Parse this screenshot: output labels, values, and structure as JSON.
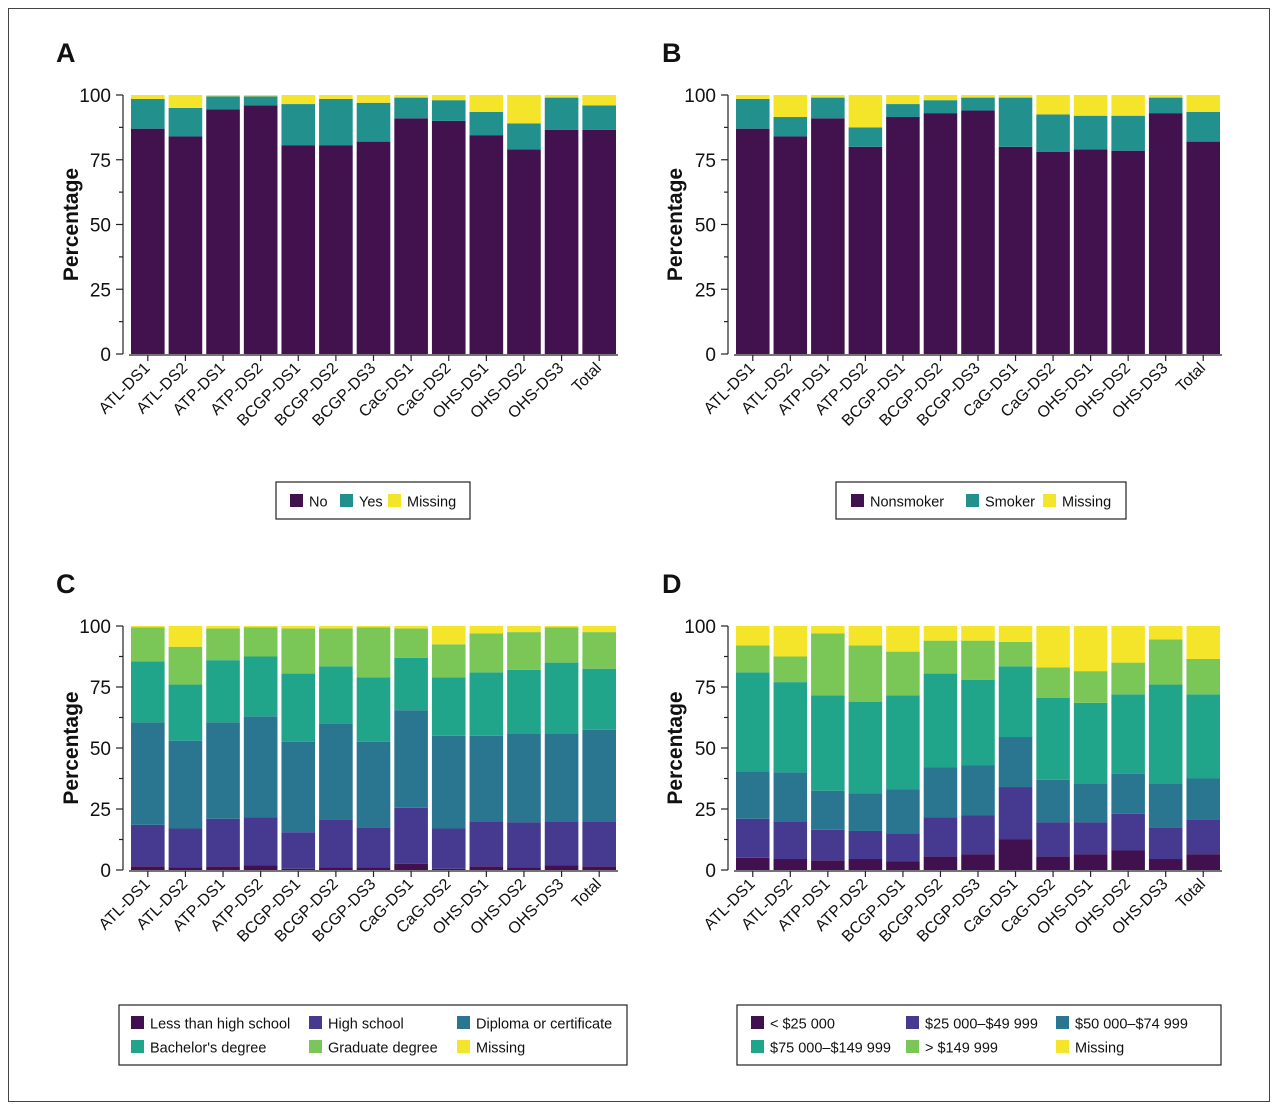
{
  "colors": {
    "A": [
      "#42124f",
      "#22908c",
      "#f5e52a"
    ],
    "B": [
      "#42124f",
      "#22908c",
      "#f5e52a"
    ],
    "C": [
      "#40114e",
      "#453a8f",
      "#2a7690",
      "#21a58a",
      "#7ac656",
      "#f5e52a"
    ],
    "D": [
      "#40114e",
      "#453a8f",
      "#2a7690",
      "#21a58a",
      "#7ac656",
      "#f5e52a"
    ]
  },
  "chart_data": [
    {
      "panel": "A",
      "type": "bar",
      "stacked": true,
      "ylabel": "Percentage",
      "ylim": [
        0,
        100
      ],
      "yticks": [
        "0",
        "25",
        "50",
        "75",
        "100"
      ],
      "categories": [
        "ATL-DS1",
        "ATL-DS2",
        "ATP-DS1",
        "ATP-DS2",
        "BCGP-DS1",
        "BCGP-DS2",
        "BCGP-DS3",
        "CaG-DS1",
        "CaG-DS2",
        "OHS-DS1",
        "OHS-DS2",
        "OHS-DS3",
        "Total"
      ],
      "legend": [
        "No",
        "Yes",
        "Missing"
      ],
      "series": [
        {
          "name": "No",
          "values": [
            87,
            84,
            94.5,
            96,
            80.5,
            80.5,
            82,
            91,
            90,
            84.5,
            79,
            86.5,
            86.5
          ]
        },
        {
          "name": "Yes",
          "values": [
            11.5,
            11,
            5,
            3.5,
            16,
            18,
            15,
            8,
            8,
            9,
            10,
            12.5,
            9.5
          ]
        },
        {
          "name": "Missing",
          "values": [
            1.5,
            5,
            0.5,
            0.5,
            3.5,
            1.5,
            3,
            1,
            2,
            6.5,
            11,
            1,
            4
          ]
        }
      ]
    },
    {
      "panel": "B",
      "type": "bar",
      "stacked": true,
      "ylabel": "Percentage",
      "ylim": [
        0,
        100
      ],
      "yticks": [
        "0",
        "25",
        "50",
        "75",
        "100"
      ],
      "categories": [
        "ATL-DS1",
        "ATL-DS2",
        "ATP-DS1",
        "ATP-DS2",
        "BCGP-DS1",
        "BCGP-DS2",
        "BCGP-DS3",
        "CaG-DS1",
        "CaG-DS2",
        "OHS-DS1",
        "OHS-DS2",
        "OHS-DS3",
        "Total"
      ],
      "legend": [
        "Nonsmoker",
        "Smoker",
        "Missing"
      ],
      "series": [
        {
          "name": "Nonsmoker",
          "values": [
            87,
            84,
            91,
            80,
            91.5,
            93,
            94,
            80,
            78,
            79,
            78.5,
            93,
            82
          ]
        },
        {
          "name": "Smoker",
          "values": [
            11.5,
            7.5,
            8,
            7.5,
            5,
            5,
            5,
            19,
            14.5,
            13,
            13.5,
            6,
            11.5
          ]
        },
        {
          "name": "Missing",
          "values": [
            1.5,
            8.5,
            1,
            12.5,
            3.5,
            2,
            1,
            1,
            7.5,
            8,
            8,
            1,
            6.5
          ]
        }
      ]
    },
    {
      "panel": "C",
      "type": "bar",
      "stacked": true,
      "ylabel": "Percentage",
      "ylim": [
        0,
        100
      ],
      "yticks": [
        "0",
        "25",
        "50",
        "75",
        "100"
      ],
      "categories": [
        "ATL-DS1",
        "ATL-DS2",
        "ATP-DS1",
        "ATP-DS2",
        "BCGP-DS1",
        "BCGP-DS2",
        "BCGP-DS3",
        "CaG-DS1",
        "CaG-DS2",
        "OHS-DS1",
        "OHS-DS2",
        "OHS-DS3",
        "Total"
      ],
      "legend": [
        "Less than high school",
        "High school",
        "Diploma or certificate",
        "Bachelor's degree",
        "Graduate degree",
        "Missing"
      ],
      "series": [
        {
          "name": "Less than high school",
          "values": [
            1.5,
            1,
            1.5,
            2,
            0.5,
            1,
            1,
            2.5,
            0.5,
            1.5,
            1,
            2,
            1.5
          ]
        },
        {
          "name": "High school",
          "values": [
            17,
            16,
            19.5,
            19.5,
            15,
            19.5,
            16.5,
            23,
            16.5,
            18.5,
            18.5,
            18,
            18.5
          ]
        },
        {
          "name": "Diploma or certificate",
          "values": [
            42,
            36,
            39.5,
            41.5,
            37,
            39.5,
            35,
            40,
            38,
            35,
            36.5,
            36,
            37.5
          ]
        },
        {
          "name": "Bachelor's degree",
          "values": [
            25,
            23,
            25.5,
            24.5,
            28,
            23.5,
            26.5,
            21.5,
            24,
            26,
            26,
            29,
            25
          ]
        },
        {
          "name": "Graduate degree",
          "values": [
            14,
            15.5,
            13,
            12,
            18.5,
            15.5,
            20.5,
            12,
            13.5,
            16,
            15.5,
            14.5,
            15
          ]
        },
        {
          "name": "Missing",
          "values": [
            0.5,
            8.5,
            1,
            0.5,
            1,
            1,
            0.5,
            1,
            7.5,
            3,
            2.5,
            0.5,
            2.5
          ]
        }
      ]
    },
    {
      "panel": "D",
      "type": "bar",
      "stacked": true,
      "ylabel": "Percentage",
      "ylim": [
        0,
        100
      ],
      "yticks": [
        "0",
        "25",
        "50",
        "75",
        "100"
      ],
      "categories": [
        "ATL-DS1",
        "ATL-DS2",
        "ATP-DS1",
        "ATP-DS2",
        "BCGP-DS1",
        "BCGP-DS2",
        "BCGP-DS3",
        "CaG-DS1",
        "CaG-DS2",
        "OHS-DS1",
        "OHS-DS2",
        "OHS-DS3",
        "Total"
      ],
      "legend": [
        "< $25 000",
        "$25 000–$49 999",
        "$50 000–$74 999",
        "$75 000–$149 999",
        "> $149 999",
        "Missing"
      ],
      "series": [
        {
          "name": "< $25 000",
          "values": [
            5,
            4.5,
            4,
            4.5,
            3.5,
            5.5,
            6.5,
            12.5,
            5.5,
            6.5,
            8,
            4.5,
            6.5
          ]
        },
        {
          "name": "$25 000–$49 999",
          "values": [
            16,
            15.5,
            12.5,
            11.5,
            11.5,
            16,
            16,
            21.5,
            14,
            13,
            15,
            13,
            14
          ]
        },
        {
          "name": "$50 000–$74 999",
          "values": [
            19.5,
            20,
            16,
            15.5,
            18,
            20.5,
            20.5,
            20.5,
            17.5,
            16,
            16.5,
            18,
            17
          ]
        },
        {
          "name": "$75 000–$149 999",
          "values": [
            40.5,
            37,
            39,
            37.5,
            38.5,
            38.5,
            35,
            29,
            33.5,
            33,
            32.5,
            40.5,
            34.5
          ]
        },
        {
          "name": "> $149 999",
          "values": [
            11,
            10.5,
            25.5,
            23,
            18,
            13.5,
            16,
            10,
            12.5,
            13,
            13,
            18.5,
            14.5
          ]
        },
        {
          "name": "Missing",
          "values": [
            8,
            12.5,
            3,
            8,
            10.5,
            6,
            6,
            6.5,
            17,
            18.5,
            15,
            5.5,
            13.5
          ]
        }
      ]
    }
  ]
}
